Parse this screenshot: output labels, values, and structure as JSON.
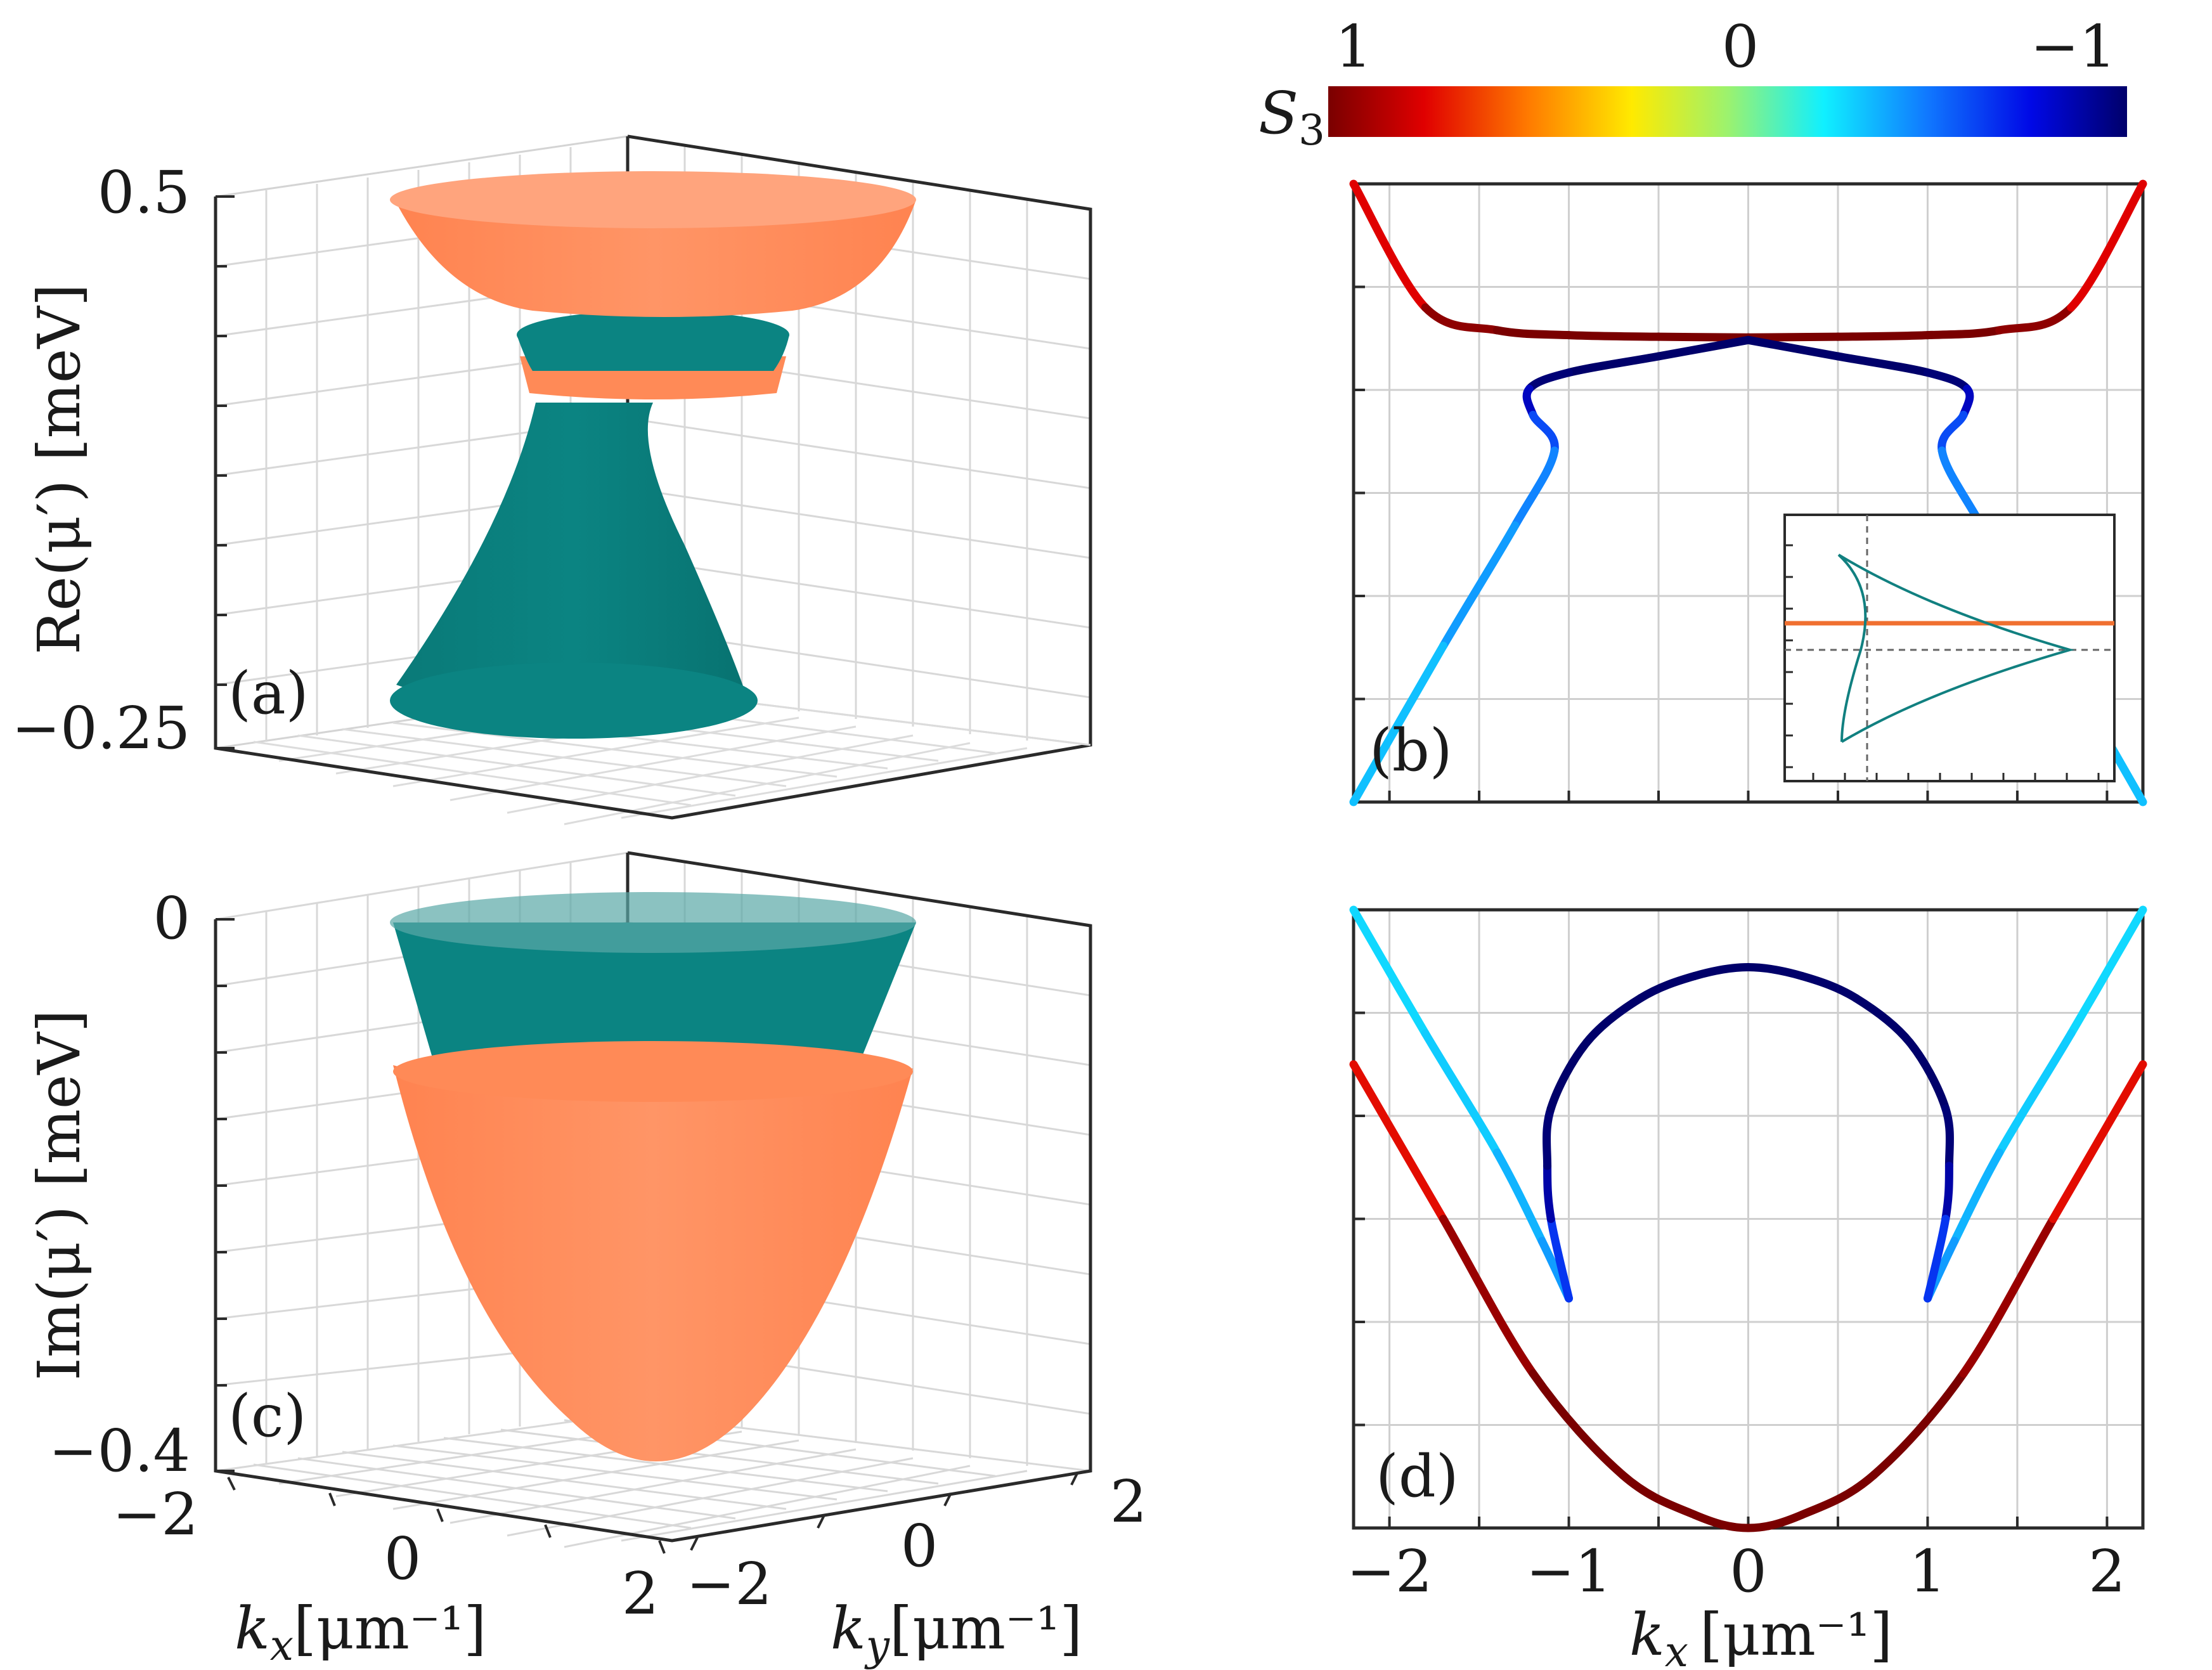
{
  "colorbar": {
    "label": "S",
    "label_sub": "3",
    "ticks": [
      "1",
      "0",
      "−1"
    ]
  },
  "panels": {
    "a": {
      "tag": "(a)",
      "ylabel": "Re(μ′) [meV]",
      "ytick_top": "0.5",
      "ytick_bottom": "−0.25"
    },
    "b": {
      "tag": "(b)"
    },
    "c": {
      "tag": "(c)",
      "ylabel": "Im(μ′) [meV]",
      "ytick_top": "0",
      "ytick_bottom": "−0.4",
      "kx_ticks": [
        "−2",
        "0",
        "2"
      ],
      "ky_ticks": [
        "−2",
        "0",
        "2"
      ],
      "kx_label": "k",
      "kx_sub": "x",
      "kx_unit": "[μm⁻¹]",
      "ky_label": "k",
      "ky_sub": "y",
      "ky_unit": "[μm⁻¹]"
    },
    "d": {
      "tag": "(d)",
      "xlabel": "k",
      "xlabel_sub": "x",
      "xlabel_unit": "[μm⁻¹]",
      "x_ticks": [
        "−2",
        "−1",
        "0",
        "1",
        "2"
      ]
    }
  },
  "colors": {
    "orange_band": "#ff8a57",
    "teal_band": "#0b8482",
    "inset_orange": "#f07030",
    "inset_teal": "#118080"
  },
  "chart_data": [
    {
      "panel": "a",
      "type": "surface",
      "description_series": [
        {
          "name": "",
          "color": "#ff8a57"
        },
        {
          "name": "",
          "color": "#0b8482"
        }
      ],
      "zlim": [
        -0.25,
        0.5
      ],
      "xlim": [
        -2,
        2
      ],
      "ylim": [
        -2,
        2
      ]
    },
    {
      "panel": "b",
      "type": "line",
      "xlim": [
        -2.2,
        2.2
      ],
      "series": [
        {
          "name": "",
          "x": [
            -2.2,
            -1.8,
            -1.4,
            -1.0,
            -0.5,
            0,
            0.5,
            1.0,
            1.4,
            1.8,
            2.2
          ],
          "y": [
            1.0,
            0.62,
            0.55,
            0.535,
            0.53,
            0.528,
            0.53,
            0.535,
            0.55,
            0.62,
            1.0
          ],
          "s3": [
            0.6,
            0.9,
            1,
            1,
            1,
            1,
            1,
            1,
            1,
            0.9,
            0.6
          ]
        },
        {
          "name": "",
          "x": [
            0,
            -0.5,
            -1.0,
            -1.22,
            -1.2,
            -1.08,
            -1.3,
            -1.7,
            -2.2
          ],
          "y": [
            0.52,
            0.47,
            0.42,
            0.37,
            0.29,
            0.18,
            -0.05,
            -0.42,
            -0.9
          ],
          "s3": [
            -1,
            -1,
            -1,
            -0.95,
            -0.7,
            -0.5,
            -0.45,
            -0.4,
            -0.3
          ]
        },
        {
          "name": "",
          "x": [
            0,
            0.5,
            1.0,
            1.22,
            1.2,
            1.08,
            1.3,
            1.7,
            2.2
          ],
          "y": [
            0.52,
            0.47,
            0.42,
            0.37,
            0.29,
            0.18,
            -0.05,
            -0.42,
            -0.9
          ],
          "s3": [
            -1,
            -1,
            -1,
            -0.95,
            -0.7,
            -0.5,
            -0.45,
            -0.4,
            -0.3
          ]
        }
      ]
    },
    {
      "panel": "d",
      "type": "line",
      "xlim": [
        -2.2,
        2.2
      ],
      "series": [
        {
          "name": "",
          "x": [
            -2.2,
            -1.7,
            -1.2,
            -0.7,
            -0.3,
            0,
            0.3,
            0.7,
            1.2,
            1.7,
            2.2
          ],
          "y": [
            0.65,
            0.3,
            -0.05,
            -0.28,
            -0.37,
            -0.4,
            -0.37,
            -0.28,
            -0.05,
            0.3,
            0.65
          ],
          "s3": [
            0.6,
            0.85,
            1,
            1,
            1,
            1,
            1,
            1,
            1,
            0.85,
            0.6
          ]
        },
        {
          "name": "",
          "x": [
            -2.2,
            -1.8,
            -1.4,
            -1.15,
            -1.0
          ],
          "y": [
            1.0,
            0.72,
            0.45,
            0.25,
            0.12
          ],
          "s3": [
            -0.3,
            -0.3,
            -0.35,
            -0.4,
            -0.45
          ]
        },
        {
          "name": "",
          "x": [
            2.2,
            1.8,
            1.4,
            1.15,
            1.0
          ],
          "y": [
            1.0,
            0.72,
            0.45,
            0.25,
            0.12
          ],
          "s3": [
            -0.3,
            -0.3,
            -0.35,
            -0.4,
            -0.45
          ]
        },
        {
          "name": "",
          "x": [
            -1.0,
            -1.1,
            -1.12,
            -1.1,
            -0.9,
            -0.6,
            -0.3,
            0,
            0.3,
            0.6,
            0.9,
            1.1,
            1.12,
            1.1,
            1.0
          ],
          "y": [
            0.12,
            0.3,
            0.42,
            0.55,
            0.7,
            0.8,
            0.85,
            0.87,
            0.85,
            0.8,
            0.7,
            0.55,
            0.42,
            0.3,
            0.12
          ],
          "s3": [
            -0.5,
            -0.8,
            -0.95,
            -1,
            -1,
            -1,
            -1,
            -1,
            -1,
            -1,
            -1,
            -1,
            -0.95,
            -0.8,
            -0.5
          ]
        }
      ]
    }
  ]
}
